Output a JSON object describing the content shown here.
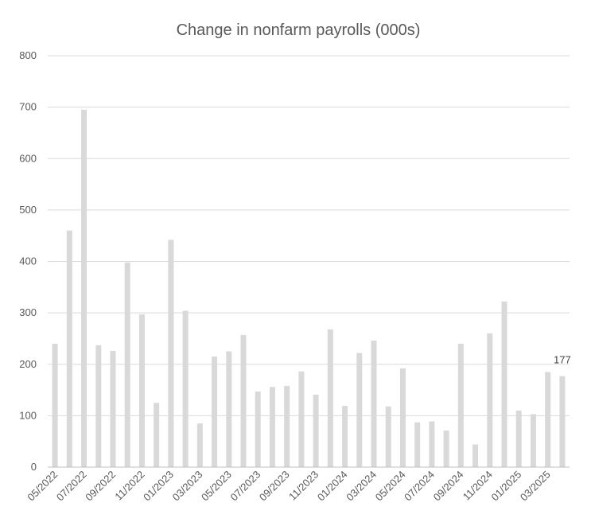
{
  "chart_data": {
    "type": "bar",
    "title": "Change in nonfarm payrolls (000s)",
    "xlabel": "",
    "ylabel": "",
    "ylim": [
      0,
      800
    ],
    "yticks": [
      0,
      100,
      200,
      300,
      400,
      500,
      600,
      700,
      800
    ],
    "grid": true,
    "legend": "none",
    "bar_color": "#d9d9d9",
    "categories": [
      "05/2022",
      "06/2022",
      "07/2022",
      "08/2022",
      "09/2022",
      "10/2022",
      "11/2022",
      "12/2022",
      "01/2023",
      "02/2023",
      "03/2023",
      "04/2023",
      "05/2023",
      "06/2023",
      "07/2023",
      "08/2023",
      "09/2023",
      "10/2023",
      "11/2023",
      "12/2023",
      "01/2024",
      "02/2024",
      "03/2024",
      "04/2024",
      "05/2024",
      "06/2024",
      "07/2024",
      "08/2024",
      "09/2024",
      "10/2024",
      "11/2024",
      "12/2024",
      "01/2025",
      "02/2025",
      "03/2025",
      "04/2025"
    ],
    "visible_tick_labels": [
      "05/2022",
      "07/2022",
      "09/2022",
      "11/2022",
      "01/2023",
      "03/2023",
      "05/2023",
      "07/2023",
      "09/2023",
      "11/2023",
      "01/2024",
      "03/2024",
      "05/2024",
      "07/2024",
      "09/2024",
      "11/2024",
      "01/2025",
      "03/2025"
    ],
    "values": [
      240,
      460,
      695,
      237,
      226,
      398,
      297,
      125,
      442,
      304,
      85,
      215,
      225,
      257,
      147,
      156,
      158,
      186,
      141,
      268,
      119,
      222,
      246,
      118,
      192,
      87,
      89,
      71,
      240,
      44,
      260,
      322,
      110,
      103,
      185,
      177
    ],
    "data_labels": [
      {
        "index": 35,
        "text": "177"
      }
    ]
  }
}
